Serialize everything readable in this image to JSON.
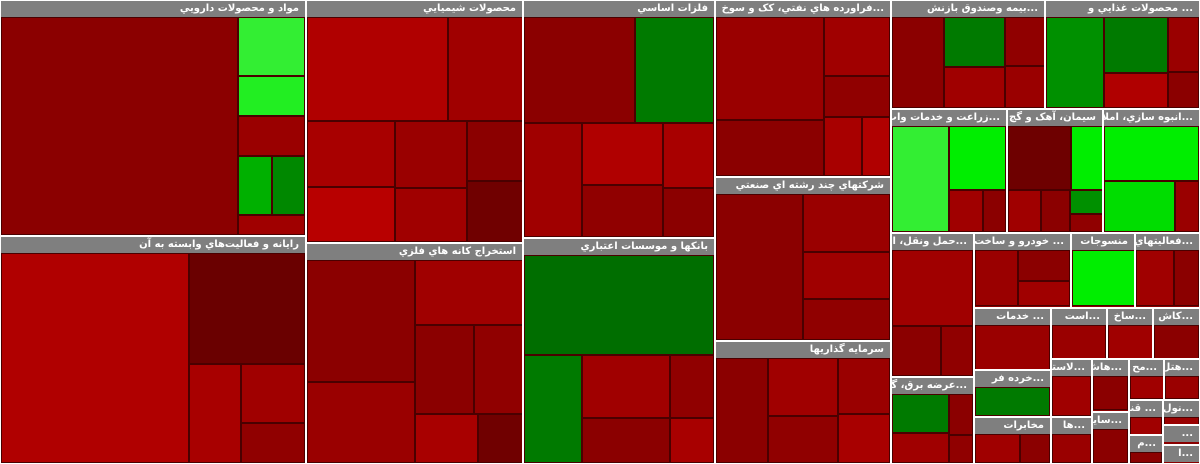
{
  "chart_data": {
    "type": "treemap",
    "title": "",
    "legend": "none",
    "colors": {
      "strong_negative": "#6e0000",
      "negative": "#9a0000",
      "mild_negative": "#c00000",
      "mild_positive": "#008000",
      "positive": "#00c000",
      "strong_positive": "#00ff00",
      "header": "#7f7f7f"
    },
    "sectors": [
      {
        "name": "مواد و محصولات دارويي",
        "weight": 30,
        "tiles": [
          {
            "value": 78,
            "color": "#8b0000"
          },
          {
            "value": 6,
            "color": "#33ee33"
          },
          {
            "value": 4,
            "color": "#22ee22"
          },
          {
            "value": 4,
            "color": "#9a0000"
          },
          {
            "value": 3,
            "color": "#00b000"
          },
          {
            "value": 3,
            "color": "#008800"
          },
          {
            "value": 2,
            "color": "#a00000"
          }
        ]
      },
      {
        "name": "رايانه و فعاليت‌هاي وابسته به آن",
        "weight": 29,
        "tiles": [
          {
            "value": 62,
            "color": "#b00000"
          },
          {
            "value": 20,
            "color": "#6a0000"
          },
          {
            "value": 8,
            "color": "#a80000"
          },
          {
            "value": 6,
            "color": "#a00000"
          },
          {
            "value": 4,
            "color": "#900000"
          }
        ]
      },
      {
        "name": "محصولات شيميايي",
        "weight": 22,
        "tiles": [
          {
            "value": 30,
            "color": "#b00000"
          },
          {
            "value": 16,
            "color": "#a00000"
          },
          {
            "value": 12,
            "color": "#a80000"
          },
          {
            "value": 10,
            "color": "#b80000"
          },
          {
            "value": 10,
            "color": "#9a0000"
          },
          {
            "value": 8,
            "color": "#a00000"
          },
          {
            "value": 7,
            "color": "#8b0000"
          },
          {
            "value": 7,
            "color": "#700000"
          }
        ]
      },
      {
        "name": "فلزات اساسي",
        "weight": 19,
        "tiles": [
          {
            "value": 28,
            "color": "#8b0000"
          },
          {
            "value": 20,
            "color": "#007a00"
          },
          {
            "value": 16,
            "color": "#a00000"
          },
          {
            "value": 12,
            "color": "#b00000"
          },
          {
            "value": 10,
            "color": "#900000"
          },
          {
            "value": 8,
            "color": "#a80000"
          },
          {
            "value": 6,
            "color": "#8b0000"
          }
        ]
      },
      {
        "name": "استخراج کانه هاي فلزي",
        "weight": 20,
        "tiles": [
          {
            "value": 30,
            "color": "#8b0000"
          },
          {
            "value": 20,
            "color": "#9a0000"
          },
          {
            "value": 16,
            "color": "#a00000"
          },
          {
            "value": 12,
            "color": "#8b0000"
          },
          {
            "value": 10,
            "color": "#900000"
          },
          {
            "value": 7,
            "color": "#a80000"
          },
          {
            "value": 5,
            "color": "#700000"
          }
        ]
      },
      {
        "name": "بانکها و موسسات اعتباري",
        "weight": 18,
        "tiles": [
          {
            "value": 48,
            "color": "#006e00"
          },
          {
            "value": 16,
            "color": "#007a00"
          },
          {
            "value": 14,
            "color": "#a00000"
          },
          {
            "value": 10,
            "color": "#8b0000"
          },
          {
            "value": 7,
            "color": "#900000"
          },
          {
            "value": 5,
            "color": "#a80000"
          }
        ]
      },
      {
        "name": "...فراورده هاي نفتي، کک و سوخ",
        "weight": 13,
        "tiles": [
          {
            "value": 40,
            "color": "#9a0000"
          },
          {
            "value": 22,
            "color": "#8b0000"
          },
          {
            "value": 14,
            "color": "#a00000"
          },
          {
            "value": 10,
            "color": "#900000"
          },
          {
            "value": 8,
            "color": "#a80000"
          },
          {
            "value": 6,
            "color": "#b00000"
          }
        ]
      },
      {
        "name": "شرکتهاي چند رشته اي صنعتي",
        "weight": 12,
        "tiles": [
          {
            "value": 50,
            "color": "#8b0000"
          },
          {
            "value": 20,
            "color": "#9a0000"
          },
          {
            "value": 16,
            "color": "#a00000"
          },
          {
            "value": 14,
            "color": "#900000"
          }
        ]
      },
      {
        "name": "سرمايه گذاريها",
        "weight": 9,
        "tiles": [
          {
            "value": 30,
            "color": "#8b0000"
          },
          {
            "value": 22,
            "color": "#a00000"
          },
          {
            "value": 18,
            "color": "#900000"
          },
          {
            "value": 16,
            "color": "#9a0000"
          },
          {
            "value": 14,
            "color": "#a80000"
          }
        ]
      },
      {
        "name": "...بيمه وصندوق بازنش",
        "weight": 7,
        "tiles": [
          {
            "value": 34,
            "color": "#8b0000"
          },
          {
            "value": 22,
            "color": "#007a00"
          },
          {
            "value": 18,
            "color": "#a00000"
          },
          {
            "value": 14,
            "color": "#900000"
          },
          {
            "value": 12,
            "color": "#9a0000"
          }
        ]
      },
      {
        "name": "...زراعت و خدمات واب",
        "weight": 6,
        "tiles": [
          {
            "value": 50,
            "color": "#33ee33"
          },
          {
            "value": 30,
            "color": "#00ee00"
          },
          {
            "value": 12,
            "color": "#a00000"
          },
          {
            "value": 8,
            "color": "#8b0000"
          }
        ]
      },
      {
        "name": "سيمان، آهک و گچ",
        "weight": 5,
        "tiles": [
          {
            "value": 40,
            "color": "#6e0000"
          },
          {
            "value": 20,
            "color": "#00ee00"
          },
          {
            "value": 14,
            "color": "#a00000"
          },
          {
            "value": 12,
            "color": "#8b0000"
          },
          {
            "value": 8,
            "color": "#009000"
          },
          {
            "value": 6,
            "color": "#900000"
          }
        ]
      },
      {
        "name": "... محصولات غذايي و",
        "weight": 7,
        "tiles": [
          {
            "value": 38,
            "color": "#009000"
          },
          {
            "value": 26,
            "color": "#007a00"
          },
          {
            "value": 16,
            "color": "#b00000"
          },
          {
            "value": 12,
            "color": "#9a0000"
          },
          {
            "value": 8,
            "color": "#8b0000"
          }
        ]
      },
      {
        "name": "...انبوه سازي، املاک و مستغ",
        "weight": 5,
        "tiles": [
          {
            "value": 52,
            "color": "#00ee00"
          },
          {
            "value": 36,
            "color": "#00dd00"
          },
          {
            "value": 12,
            "color": "#9a0000"
          }
        ]
      },
      {
        "name": "...عرضه برق، گاز",
        "weight": 3,
        "tiles": [
          {
            "value": 40,
            "color": "#007a00"
          },
          {
            "value": 30,
            "color": "#a00000"
          },
          {
            "value": 18,
            "color": "#8b0000"
          },
          {
            "value": 12,
            "color": "#900000"
          }
        ]
      },
      {
        "name": "...حمل ونقل، انباردار",
        "weight": 5,
        "tiles": [
          {
            "value": 60,
            "color": "#a00000"
          },
          {
            "value": 24,
            "color": "#8b0000"
          },
          {
            "value": 16,
            "color": "#900000"
          }
        ]
      },
      {
        "name": "... خودرو و ساخت",
        "weight": 3,
        "tiles": [
          {
            "value": 45,
            "color": "#9a0000"
          },
          {
            "value": 30,
            "color": "#8b0000"
          },
          {
            "value": 25,
            "color": "#a00000"
          }
        ]
      },
      {
        "name": "منسوجات",
        "weight": 2,
        "tiles": [
          {
            "value": 100,
            "color": "#00ee00"
          }
        ]
      },
      {
        "name": "...فعاليتهاي",
        "weight": 2,
        "tiles": [
          {
            "value": 60,
            "color": "#a00000"
          },
          {
            "value": 40,
            "color": "#8b0000"
          }
        ]
      },
      {
        "name": "... خدمات",
        "weight": 2,
        "tiles": [
          {
            "value": 100,
            "color": "#9a0000"
          }
        ]
      },
      {
        "name": "...خرده فر",
        "weight": 1.5,
        "tiles": [
          {
            "value": 100,
            "color": "#007a00"
          }
        ]
      },
      {
        "name": "مخابرات",
        "weight": 1.5,
        "tiles": [
          {
            "value": 60,
            "color": "#a00000"
          },
          {
            "value": 40,
            "color": "#8b0000"
          }
        ]
      },
      {
        "name": "...است",
        "weight": 1.2,
        "tiles": [
          {
            "value": 100,
            "color": "#9a0000"
          }
        ]
      },
      {
        "name": "...ساخ",
        "weight": 1,
        "tiles": [
          {
            "value": 100,
            "color": "#a00000"
          }
        ]
      },
      {
        "name": "...کاش",
        "weight": 1,
        "tiles": [
          {
            "value": 100,
            "color": "#8b0000"
          }
        ]
      },
      {
        "name": "...لاستيک",
        "weight": 1,
        "tiles": [
          {
            "value": 100,
            "color": "#a00000"
          }
        ]
      },
      {
        "name": "...ها",
        "weight": 0.8,
        "tiles": [
          {
            "value": 100,
            "color": "#9a0000"
          }
        ]
      },
      {
        "name": "...هاش",
        "weight": 0.8,
        "tiles": [
          {
            "value": 100,
            "color": "#8b0000"
          }
        ]
      },
      {
        "name": "...مح",
        "weight": 0.6,
        "tiles": [
          {
            "value": 100,
            "color": "#a00000"
          }
        ]
      },
      {
        "name": "...ساير م",
        "weight": 0.8,
        "tiles": [
          {
            "value": 100,
            "color": "#8b0000"
          }
        ]
      },
      {
        "name": "...هتل",
        "weight": 0.6,
        "tiles": [
          {
            "value": 100,
            "color": "#9a0000"
          }
        ]
      },
      {
        "name": "... قند",
        "weight": 0.5,
        "tiles": [
          {
            "value": 100,
            "color": "#a00000"
          }
        ]
      },
      {
        "name": "...م",
        "weight": 0.4,
        "tiles": [
          {
            "value": 100,
            "color": "#8b0000"
          }
        ]
      },
      {
        "name": "...نول",
        "weight": 0.4,
        "tiles": [
          {
            "value": 100,
            "color": "#9a0000"
          }
        ]
      },
      {
        "name": "...",
        "weight": 0.3,
        "tiles": [
          {
            "value": 100,
            "color": "#8b0000"
          }
        ]
      },
      {
        "name": "...ا",
        "weight": 0.3,
        "tiles": [
          {
            "value": 100,
            "color": "#a00000"
          }
        ]
      }
    ]
  }
}
